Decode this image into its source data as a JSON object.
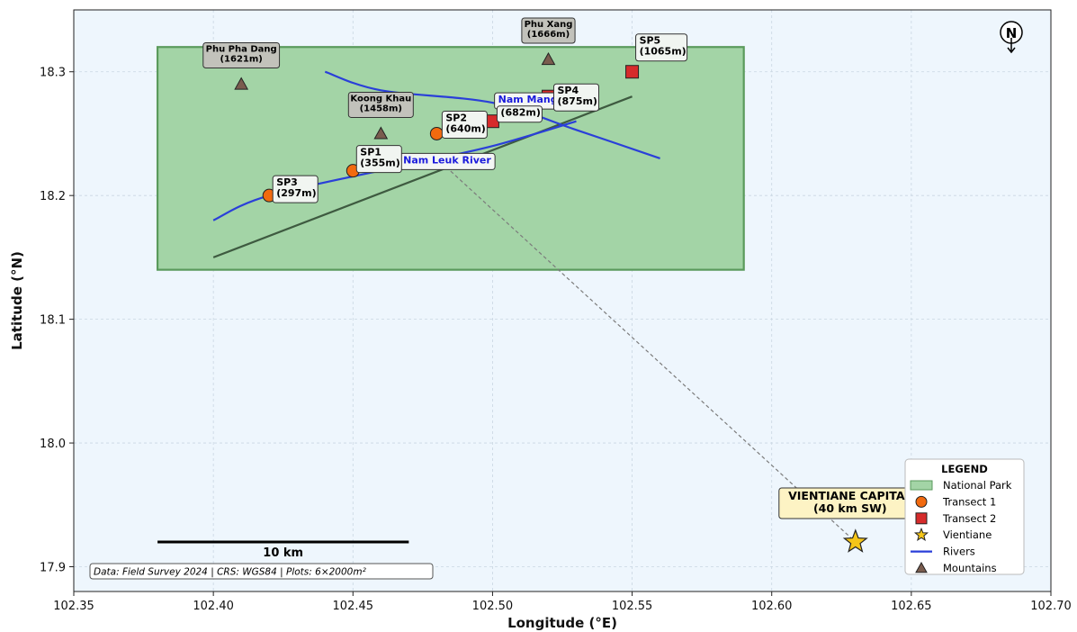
{
  "axes": {
    "xlabel": "Longitude (°E)",
    "ylabel": "Latitude (°N)",
    "xlim": [
      102.35,
      102.7
    ],
    "ylim": [
      17.88,
      18.35
    ],
    "xticks": [
      "102.35",
      "102.40",
      "102.45",
      "102.50",
      "102.55",
      "102.60",
      "102.65",
      "102.70"
    ],
    "yticks": [
      "17.9",
      "18.0",
      "18.1",
      "18.2",
      "18.3"
    ],
    "grid": true
  },
  "colors": {
    "background": "#eef6fd",
    "park_fill": "#a3d4a6",
    "park_edge": "#5a9a5c",
    "transect1": "#f26a0f",
    "transect2": "#d62b2b",
    "river": "#2a3fd9",
    "mountain": "#7a5c4e",
    "vientiane": "#f5c518",
    "transect_line": "#3e5a40"
  },
  "park": {
    "lon": [
      102.38,
      102.59
    ],
    "lat": [
      18.14,
      18.32
    ]
  },
  "transect_line": {
    "from": [
      102.4,
      18.15
    ],
    "to": [
      102.55,
      18.28
    ]
  },
  "rivers": [
    {
      "name": "Nam Leuk River",
      "points": [
        [
          102.4,
          18.18
        ],
        [
          102.42,
          18.2
        ],
        [
          102.47,
          18.225
        ],
        [
          102.5,
          18.24
        ],
        [
          102.53,
          18.26
        ]
      ]
    },
    {
      "name": "Nam Mang River",
      "points": [
        [
          102.44,
          18.3
        ],
        [
          102.46,
          18.285
        ],
        [
          102.5,
          18.275
        ],
        [
          102.53,
          18.253
        ],
        [
          102.56,
          18.23
        ]
      ]
    }
  ],
  "transect1": [
    {
      "id": "SP1",
      "elev": "(355m)",
      "lon": 102.45,
      "lat": 18.22
    },
    {
      "id": "SP2",
      "elev": "(640m)",
      "lon": 102.48,
      "lat": 18.25
    },
    {
      "id": "SP3",
      "elev": "(297m)",
      "lon": 102.42,
      "lat": 18.2
    }
  ],
  "transect2": [
    {
      "id": "SP4",
      "elev": "(875m)",
      "lon": 102.52,
      "lat": 18.28
    },
    {
      "id": "SP5",
      "elev": "(1065m)",
      "lon": 102.55,
      "lat": 18.3
    },
    {
      "id": "",
      "elev": "(682m)",
      "lon": 102.5,
      "lat": 18.26
    }
  ],
  "mountains": [
    {
      "name": "Phu Pha Dang",
      "elev": "(1621m)",
      "lon": 102.41,
      "lat": 18.29
    },
    {
      "name": "Koong Khau",
      "elev": "(1458m)",
      "lon": 102.46,
      "lat": 18.25
    },
    {
      "name": "Phu Xang",
      "elev": "(1666m)",
      "lon": 102.52,
      "lat": 18.31
    }
  ],
  "vientiane": {
    "line1": "VIENTIANE CAPITAL",
    "line2": "(40 km SW)",
    "lon": 102.63,
    "lat": 17.92,
    "connector_from": [
      102.48,
      18.23
    ]
  },
  "legend": {
    "title": "LEGEND",
    "placement": "lower-right",
    "items": [
      "National Park",
      "Transect 1",
      "Transect 2",
      "Vientiane",
      "Rivers",
      "Mountains"
    ]
  },
  "scale_bar": {
    "label": "10 km",
    "from_lon": 102.38,
    "to_lon": 102.47,
    "lat": 17.92
  },
  "north_arrow": "N",
  "footer": "Data: Field Survey 2024 | CRS: WGS84 | Plots: 6×2000m²"
}
